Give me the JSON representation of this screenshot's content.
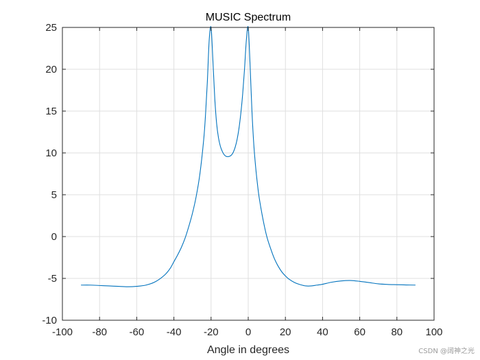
{
  "chart_data": {
    "type": "line",
    "title": "MUSIC Spectrum",
    "xlabel": "Angle in degrees",
    "ylabel": "",
    "xlim": [
      -100,
      100
    ],
    "ylim": [
      -10,
      25
    ],
    "xticks": [
      "-100",
      "-80",
      "-60",
      "-40",
      "-20",
      "0",
      "20",
      "40",
      "60",
      "80",
      "100"
    ],
    "yticks": [
      "-10",
      "-5",
      "0",
      "5",
      "10",
      "15",
      "20",
      "25"
    ],
    "grid": true,
    "line_color": "#0072bd",
    "series": [
      {
        "x": [
          -90,
          -85,
          -80,
          -75,
          -70,
          -65,
          -60,
          -55,
          -50,
          -45,
          -42,
          -40,
          -38,
          -36,
          -34,
          -32,
          -30,
          -28,
          -26,
          -24,
          -23,
          -22,
          -21,
          -20,
          -19,
          -18,
          -17,
          -16,
          -15,
          -14,
          -13,
          -12,
          -11,
          -10,
          -9,
          -8,
          -7,
          -6,
          -5,
          -4,
          -3,
          -2,
          -1,
          0,
          1,
          2,
          3,
          4,
          5,
          6,
          8,
          10,
          12,
          14,
          16,
          18,
          20,
          22,
          25,
          28,
          31,
          34,
          37,
          40,
          45,
          50,
          55,
          60,
          65,
          70,
          75,
          80,
          85,
          90
        ],
        "y": [
          -5.8,
          -5.8,
          -5.85,
          -5.9,
          -5.95,
          -6.0,
          -5.95,
          -5.8,
          -5.4,
          -4.6,
          -3.8,
          -3.0,
          -2.2,
          -1.3,
          -0.2,
          1.2,
          2.8,
          4.8,
          7.5,
          11.5,
          14.5,
          18.5,
          23.5,
          25.0,
          21.0,
          16.5,
          13.5,
          11.8,
          10.8,
          10.2,
          9.8,
          9.6,
          9.55,
          9.6,
          9.75,
          10.1,
          10.7,
          11.6,
          12.9,
          14.7,
          17.0,
          20.0,
          23.5,
          25.0,
          20.5,
          15.0,
          11.0,
          8.3,
          6.2,
          4.5,
          2.0,
          0.0,
          -1.4,
          -2.6,
          -3.5,
          -4.2,
          -4.7,
          -5.1,
          -5.5,
          -5.75,
          -5.9,
          -5.9,
          -5.8,
          -5.7,
          -5.45,
          -5.3,
          -5.25,
          -5.35,
          -5.5,
          -5.65,
          -5.72,
          -5.75,
          -5.78,
          -5.8
        ]
      }
    ]
  },
  "watermark": "CSDN @阔神之光"
}
